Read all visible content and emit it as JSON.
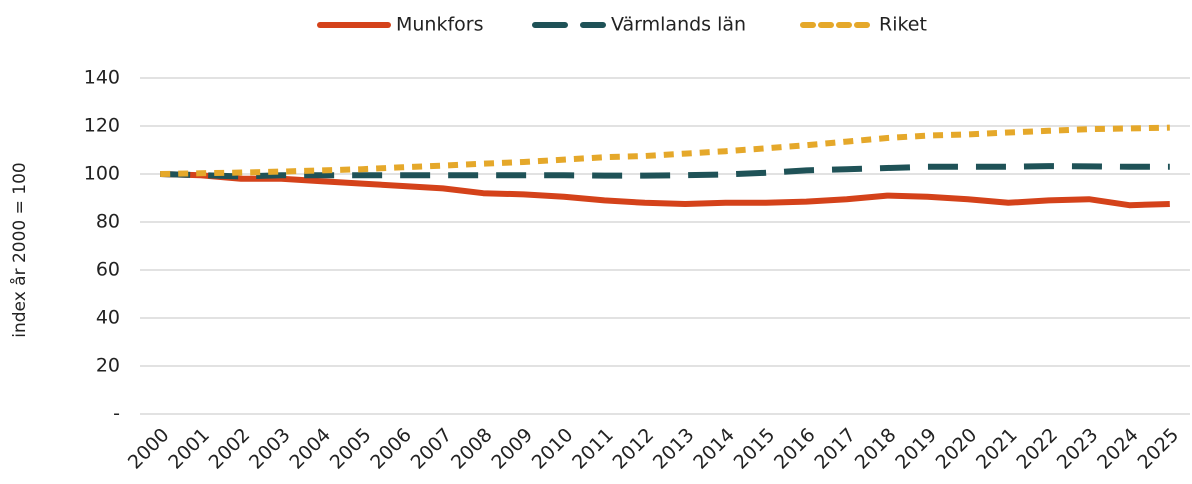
{
  "chart_data": {
    "type": "line",
    "y_label": "index år 2000 = 100",
    "categories": [
      "2000",
      "2001",
      "2002",
      "2003",
      "2004",
      "2005",
      "2006",
      "2007",
      "2008",
      "2009",
      "2010",
      "2011",
      "2012",
      "2013",
      "2014",
      "2015",
      "2016",
      "2017",
      "2018",
      "2019",
      "2020",
      "2021",
      "2022",
      "2023",
      "2024",
      "2025"
    ],
    "series": [
      {
        "name": "Munkfors",
        "color": "#d4421a",
        "dash": "solid",
        "values": [
          100,
          99.5,
          98,
          98,
          97,
          96,
          95,
          94,
          92,
          91.5,
          90.5,
          89,
          88,
          87.5,
          88,
          88,
          88.5,
          89.5,
          91,
          90.5,
          89.5,
          88,
          89,
          89.5,
          87,
          87.5
        ]
      },
      {
        "name": "Värmlands län",
        "color": "#1f5257",
        "dash": "long",
        "values": [
          100,
          99.5,
          99,
          99.5,
          99.5,
          99.5,
          99.5,
          99.5,
          99.5,
          99.5,
          99.5,
          99.3,
          99.3,
          99.5,
          99.8,
          100.5,
          101.5,
          102,
          102.5,
          103,
          103,
          103,
          103.3,
          103.2,
          103,
          103
        ]
      },
      {
        "name": "Riket",
        "color": "#e5a82a",
        "dash": "short",
        "values": [
          100,
          100.3,
          100.6,
          101,
          101.5,
          102,
          102.8,
          103.5,
          104.3,
          105,
          106,
          107,
          107.5,
          108.5,
          109.5,
          110.7,
          112,
          113.5,
          115,
          116,
          116.5,
          117.3,
          118,
          118.7,
          119,
          119.3
        ]
      }
    ],
    "ylim": [
      0,
      140
    ],
    "yticks": [
      {
        "value": 0,
        "label": "-"
      },
      20,
      40,
      60,
      80,
      100,
      120,
      140
    ],
    "grid": true,
    "legend": "top"
  }
}
